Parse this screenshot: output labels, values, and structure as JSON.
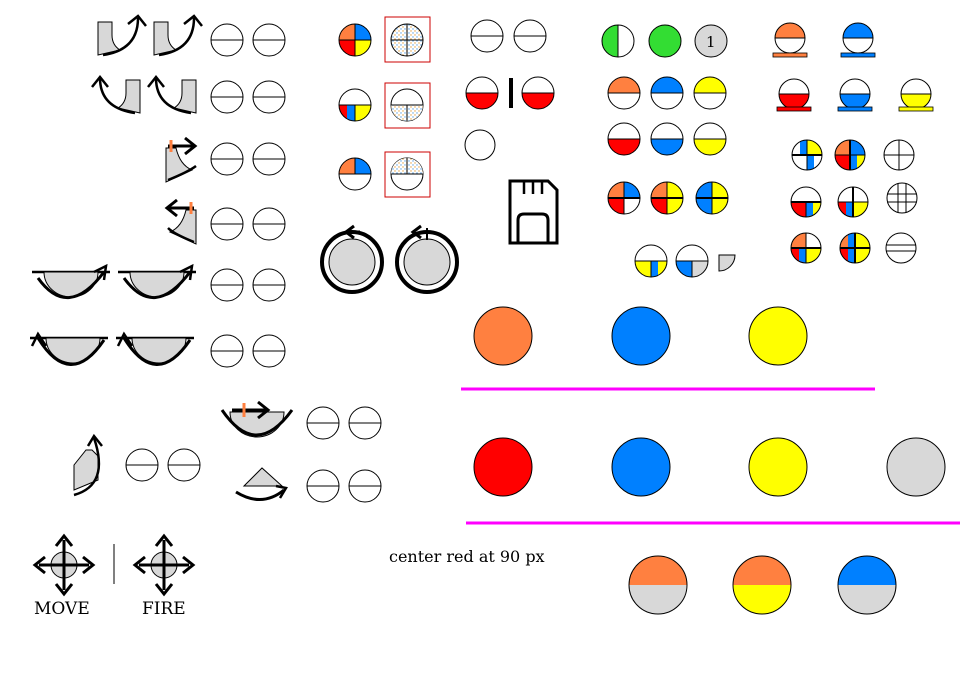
{
  "labels": {
    "move": "MOVE",
    "fire": "FIRE",
    "note": "center red at 90 px",
    "badge": "1"
  },
  "colors": {
    "orange": "#ff8040",
    "blue": "#0080ff",
    "yellow": "#ffff00",
    "red": "#ff0000",
    "green": "#33dd33",
    "gray": "#d8d8d8",
    "magenta": "#ff00ff",
    "frame": "#cc0000"
  },
  "icons": [
    "rotate-clockwise-icon",
    "rotate-counterclockwise-icon",
    "shift-right-icon",
    "shift-left-icon",
    "bowl-arc-icon",
    "split-circle-icon",
    "quarter-color-icon",
    "dial-icon",
    "sd-card-icon",
    "move-arrows-icon",
    "fire-arrows-icon"
  ]
}
